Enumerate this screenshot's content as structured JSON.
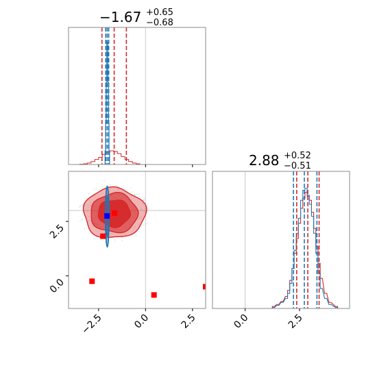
{
  "colors": {
    "blue": "#1f77b4",
    "red": "#d62728",
    "marker_red": "#ff0000",
    "marker_blue": "#0000ff",
    "grid": "#c8c8c8",
    "frame": "#888888"
  },
  "chart_data": {
    "type": "corner",
    "params": [
      {
        "title_value": "−1.67",
        "title_plus": "+0.65",
        "title_minus": "−0.68",
        "range": [
          -4.1,
          3.2
        ]
      },
      {
        "title_value": "2.88",
        "title_plus": "+0.52",
        "title_minus": "−0.51",
        "range": [
          -1.5,
          4.8
        ]
      }
    ],
    "ticks": {
      "p0": [
        -2.5,
        0.0,
        2.5
      ],
      "p0_labels": [
        "−2.5",
        "0.0",
        "2.5"
      ],
      "p1": [
        0.0,
        2.5
      ],
      "p1_labels": [
        "0.0",
        "2.5"
      ]
    },
    "truth_lines": [
      0.0,
      3.0
    ],
    "p0_quantiles": {
      "red": [
        -2.32,
        -1.67,
        -1.02
      ],
      "blue": [
        -2.12,
        -2.04,
        -1.96
      ]
    },
    "p1_quantiles": {
      "red": [
        2.37,
        2.88,
        3.4
      ],
      "blue": [
        2.22,
        2.72,
        3.3
      ]
    },
    "p0_red_hist": {
      "x": [
        -3.4,
        -3.2,
        -3.0,
        -2.8,
        -2.6,
        -2.4,
        -2.2,
        -2.0,
        -1.8,
        -1.6,
        -1.4,
        -1.2,
        -1.0,
        -0.8,
        -0.6,
        -0.4
      ],
      "y": [
        0.5,
        1,
        2,
        4,
        7,
        10,
        14,
        17,
        19,
        18,
        15,
        11,
        7,
        4,
        2,
        1
      ]
    },
    "p0_blue_hist": {
      "x": [
        -2.14,
        -2.11,
        -2.08,
        -2.05,
        -2.02,
        -1.99,
        -1.96,
        -1.93
      ],
      "y": [
        20,
        60,
        120,
        180,
        178,
        120,
        60,
        18
      ]
    },
    "p1_blue_hist": {
      "x": [
        1.3,
        1.5,
        1.7,
        1.9,
        2.0,
        2.1,
        2.2,
        2.3,
        2.4,
        2.5,
        2.6,
        2.7,
        2.8,
        2.9,
        3.0,
        3.1,
        3.2,
        3.3,
        3.4,
        3.5,
        3.7,
        3.9,
        4.2
      ],
      "y": [
        1,
        3,
        6,
        10,
        15,
        25,
        40,
        58,
        75,
        90,
        108,
        118,
        120,
        113,
        104,
        92,
        75,
        55,
        35,
        20,
        10,
        4,
        1
      ]
    },
    "p1_red_hist": {
      "x": [
        1.3,
        1.5,
        1.7,
        1.9,
        2.0,
        2.1,
        2.2,
        2.3,
        2.4,
        2.5,
        2.6,
        2.7,
        2.8,
        2.9,
        3.0,
        3.1,
        3.2,
        3.3,
        3.4,
        3.5,
        3.7,
        3.9,
        4.2
      ],
      "y": [
        2,
        4,
        7,
        12,
        18,
        28,
        40,
        55,
        70,
        85,
        100,
        110,
        116,
        112,
        108,
        96,
        80,
        62,
        45,
        30,
        15,
        6,
        2
      ]
    },
    "red_markers": [
      {
        "x": -1.65,
        "y": 2.88
      },
      {
        "x": -2.27,
        "y": 1.82
      },
      {
        "x": -2.85,
        "y": -0.25
      },
      {
        "x": 0.45,
        "y": -0.88
      },
      {
        "x": 3.2,
        "y": -0.5
      }
    ],
    "blue_markers": [
      {
        "x": -2.05,
        "y": 2.75
      }
    ],
    "red_contours": [
      {
        "cx": -1.67,
        "cy": 2.88,
        "rx": 1.65,
        "ry": 1.15
      },
      {
        "cx": -1.67,
        "cy": 2.88,
        "rx": 1.25,
        "ry": 0.9
      },
      {
        "cx": -1.67,
        "cy": 2.88,
        "rx": 0.85,
        "ry": 0.62
      }
    ],
    "blue_contour": {
      "cx": -2.04,
      "cy": 2.72,
      "rx": 0.09,
      "ry": 1.4
    }
  }
}
